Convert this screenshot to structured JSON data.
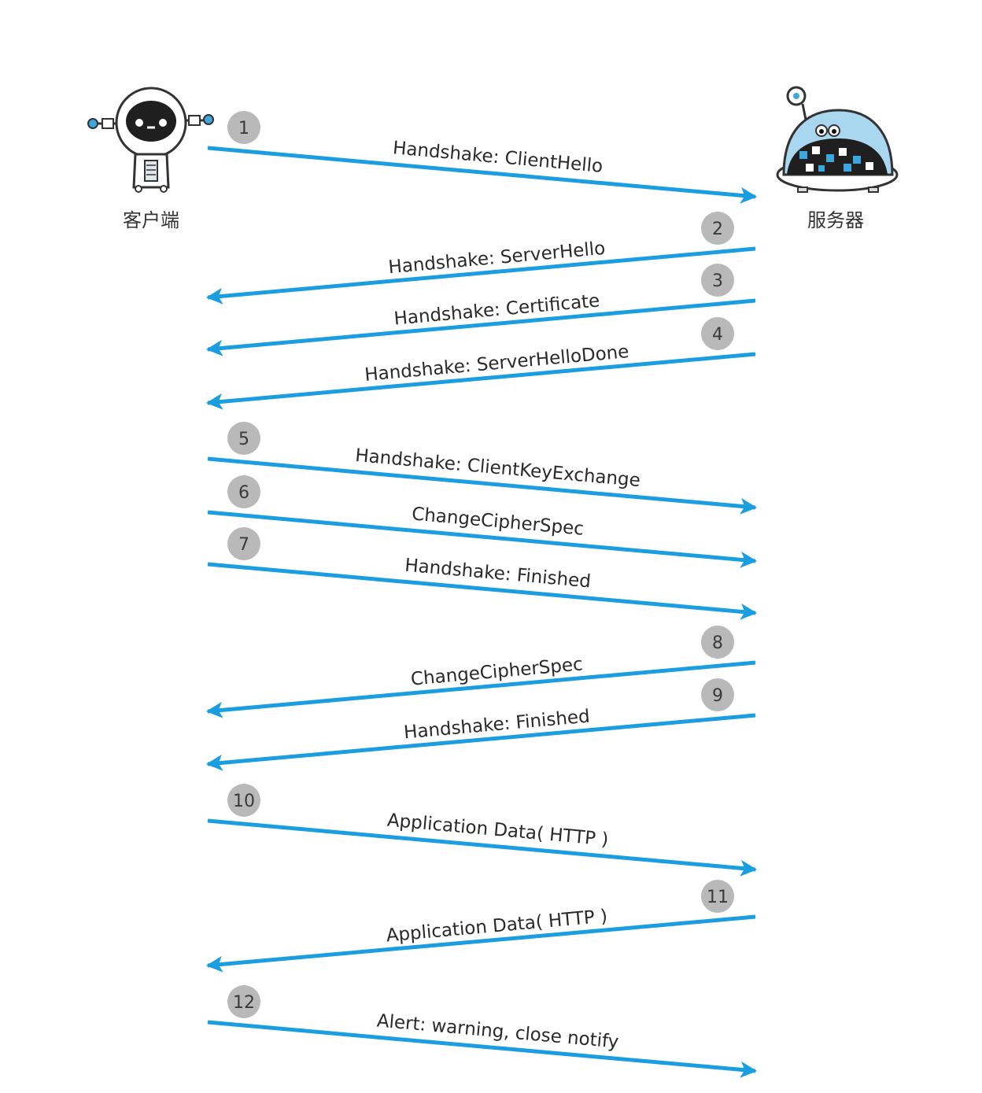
{
  "actors": {
    "client": {
      "label": "客户端",
      "icon": "robot-client-icon"
    },
    "server": {
      "label": "服务器",
      "icon": "robot-server-icon"
    }
  },
  "colors": {
    "arrow": "#1a9ee0",
    "badge": "#b9b9b9",
    "text": "#2a2a2a"
  },
  "messages": [
    {
      "step": "1",
      "label": "Handshake: ClientHello",
      "direction": "client-to-server"
    },
    {
      "step": "2",
      "label": "Handshake: ServerHello",
      "direction": "server-to-client"
    },
    {
      "step": "3",
      "label": "Handshake: Certificate",
      "direction": "server-to-client"
    },
    {
      "step": "4",
      "label": "Handshake: ServerHelloDone",
      "direction": "server-to-client"
    },
    {
      "step": "5",
      "label": "Handshake: ClientKeyExchange",
      "direction": "client-to-server"
    },
    {
      "step": "6",
      "label": "ChangeCipherSpec",
      "direction": "client-to-server"
    },
    {
      "step": "7",
      "label": "Handshake: Finished",
      "direction": "client-to-server"
    },
    {
      "step": "8",
      "label": "ChangeCipherSpec",
      "direction": "server-to-client"
    },
    {
      "step": "9",
      "label": "Handshake: Finished",
      "direction": "server-to-client"
    },
    {
      "step": "10",
      "label": "Application Data( HTTP )",
      "direction": "client-to-server"
    },
    {
      "step": "11",
      "label": "Application Data( HTTP )",
      "direction": "server-to-client"
    },
    {
      "step": "12",
      "label": "Alert: warning, close notify",
      "direction": "client-to-server"
    }
  ]
}
